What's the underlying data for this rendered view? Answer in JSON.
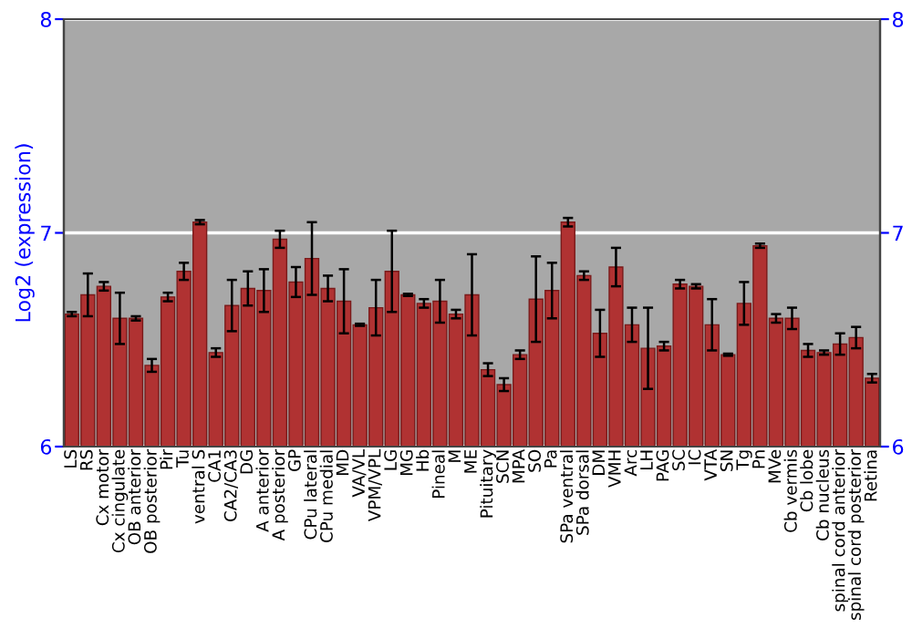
{
  "chart_data": {
    "type": "bar",
    "ylabel": "Log2 (expression)",
    "categories": [
      "LS",
      "RS",
      "Cx motor",
      "Cx cingulate",
      "OB anterior",
      "OB posterior",
      "Pir",
      "Tu",
      "ventral S",
      "CA1",
      "CA2/CA3",
      "DG",
      "A anterior",
      "A posterior",
      "GP",
      "CPu lateral",
      "CPu medial",
      "MD",
      "VA/VL",
      "VPM/VPL",
      "LG",
      "MG",
      "Hb",
      "Pineal",
      "M",
      "ME",
      "Pituitary",
      "SCN",
      "MPA",
      "SO",
      "Pa",
      "SPa ventral",
      "SPa dorsal",
      "DM",
      "VMH",
      "Arc",
      "LH",
      "PAG",
      "SC",
      "IC",
      "VTA",
      "SN",
      "Tg",
      "Pn",
      "MVe",
      "Cb vermis",
      "Cb lobe",
      "Cb nucleus",
      "spinal cord anterior",
      "spinal cord posterior",
      "Retina"
    ],
    "values": [
      6.62,
      6.71,
      6.75,
      6.6,
      6.6,
      6.38,
      6.7,
      6.82,
      7.05,
      6.44,
      6.66,
      6.74,
      6.73,
      6.97,
      6.77,
      6.88,
      6.74,
      6.68,
      6.57,
      6.65,
      6.82,
      6.71,
      6.67,
      6.68,
      6.62,
      6.71,
      6.36,
      6.29,
      6.43,
      6.69,
      6.73,
      7.05,
      6.8,
      6.53,
      6.84,
      6.57,
      6.46,
      6.47,
      6.76,
      6.75,
      6.57,
      6.43,
      6.67,
      6.94,
      6.6,
      6.6,
      6.45,
      6.44,
      6.48,
      6.51,
      6.32
    ],
    "errors": [
      0.01,
      0.1,
      0.02,
      0.12,
      0.01,
      0.03,
      0.02,
      0.04,
      0.01,
      0.02,
      0.12,
      0.08,
      0.1,
      0.04,
      0.07,
      0.17,
      0.06,
      0.15,
      0.005,
      0.13,
      0.19,
      0.005,
      0.02,
      0.1,
      0.02,
      0.19,
      0.03,
      0.03,
      0.02,
      0.2,
      0.13,
      0.02,
      0.02,
      0.11,
      0.09,
      0.08,
      0.19,
      0.02,
      0.02,
      0.01,
      0.12,
      0.005,
      0.1,
      0.01,
      0.02,
      0.05,
      0.03,
      0.01,
      0.05,
      0.05,
      0.02
    ],
    "color": "#b03232",
    "ylim": [
      6,
      8
    ],
    "yticks": [
      6,
      7,
      8
    ],
    "y2lim": [
      6,
      8
    ],
    "y2ticks": [
      6,
      7,
      8
    ],
    "grid": "y"
  }
}
